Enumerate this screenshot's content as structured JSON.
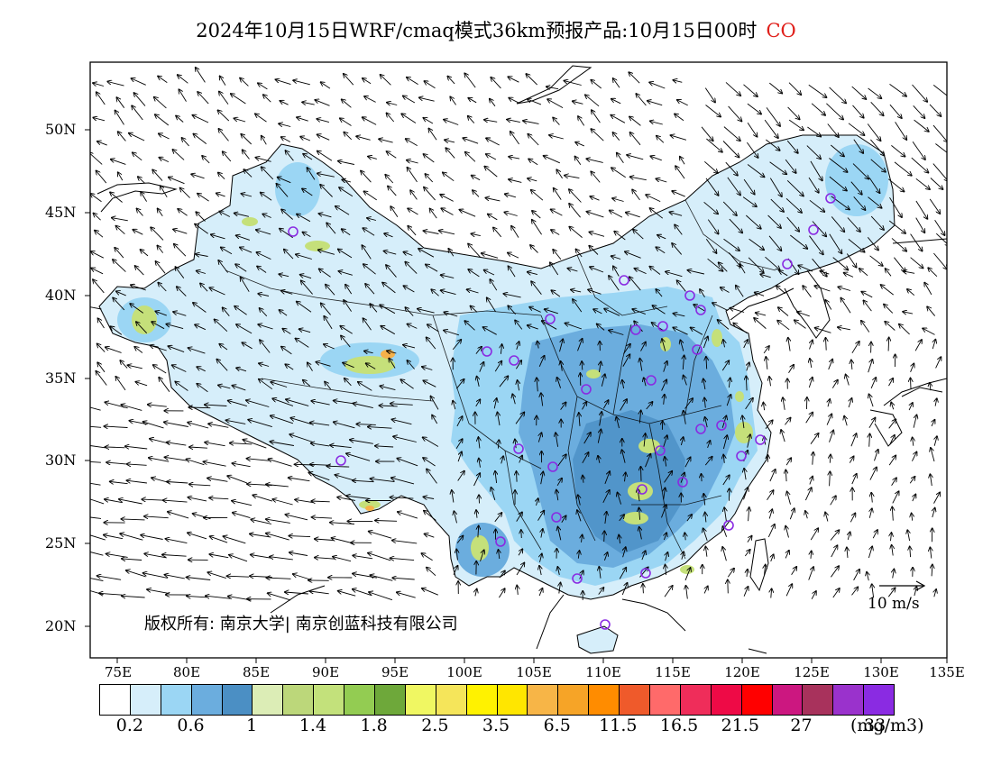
{
  "title": {
    "text": "2024年10月15日WRF/cmaq模式36km预报产品:10月15日00时",
    "pollutant": "CO"
  },
  "map": {
    "lat_ticks": [
      "50N",
      "45N",
      "40N",
      "35N",
      "30N",
      "25N",
      "20N"
    ],
    "lon_ticks": [
      "75E",
      "80E",
      "85E",
      "90E",
      "95E",
      "100E",
      "105E",
      "110E",
      "115E",
      "120E",
      "125E",
      "130E",
      "135E"
    ],
    "copyright": "版权所有: 南京大学| 南京创蓝科技有限公司",
    "wind_scale_label": "10 m/s",
    "colors": {
      "land_base": "#d6eefa",
      "medium": "#9bd6f4",
      "high": "#6badde",
      "highest": "#4b8fc4",
      "hotspot_yellowgreen": "#c5e07a",
      "hotspot_orange": "#f5b14a"
    }
  },
  "legend": {
    "colors": [
      "#ffffff",
      "#d6eefa",
      "#9bd6f4",
      "#6badde",
      "#4b8fc4",
      "#dcedb6",
      "#bcd77a",
      "#c3e17b",
      "#93cc52",
      "#6ea83a",
      "#f0f762",
      "#f5e55a",
      "#fff200",
      "#ffe600",
      "#f7b547",
      "#f6a427",
      "#ff8c00",
      "#ef5a2b",
      "#ff6a6a",
      "#ef2d5a",
      "#ee0a46",
      "#ff0000",
      "#cc1780",
      "#a8325c",
      "#9a32cc",
      "#8a2be2"
    ],
    "labels": [
      "0.2",
      "0.6",
      "1",
      "1.4",
      "1.8",
      "2.5",
      "3.5",
      "6.5",
      "11.5",
      "16.5",
      "21.5",
      "27",
      "33"
    ],
    "unit": "(mg/m3)"
  }
}
